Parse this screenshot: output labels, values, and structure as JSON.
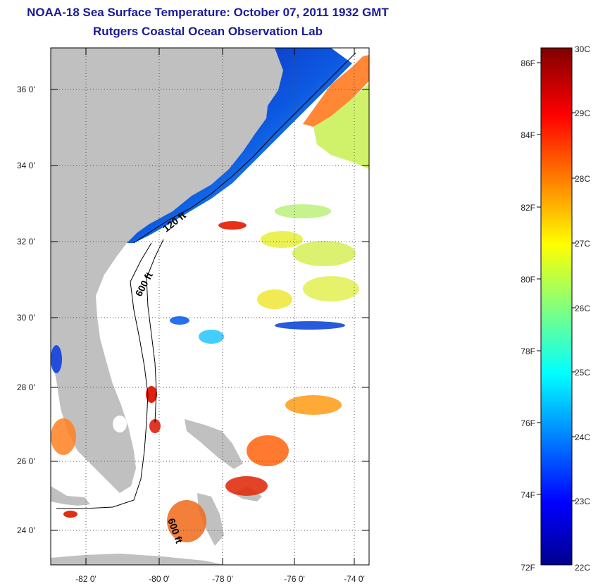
{
  "title": "NOAA-18 Sea Surface Temperature:  October 07, 2011 1932 GMT",
  "subtitle": "Rutgers Coastal Ocean Observation Lab",
  "map": {
    "lat_labels": [
      "36 0'",
      "34 0'",
      "32 0'",
      "30 0'",
      "28 0'",
      "26 0'",
      "24 0'"
    ],
    "lon_labels": [
      "-82 0'",
      "-80 0'",
      "-78 0'",
      "-76 0'",
      "-74 0'"
    ],
    "contours": [
      "120 ft",
      "600 ft",
      "600 ft"
    ],
    "colors": {
      "land": "#c0c0c0",
      "ocean_nodata": "#ffffff"
    }
  },
  "colorbar": {
    "celsius_labels": [
      "30C",
      "29C",
      "28C",
      "27C",
      "26C",
      "25C",
      "24C",
      "23C",
      "22C"
    ],
    "fahrenheit_labels": [
      "86F",
      "84F",
      "82F",
      "80F",
      "78F",
      "76F",
      "74F",
      "72F"
    ],
    "colormap": "jet"
  }
}
